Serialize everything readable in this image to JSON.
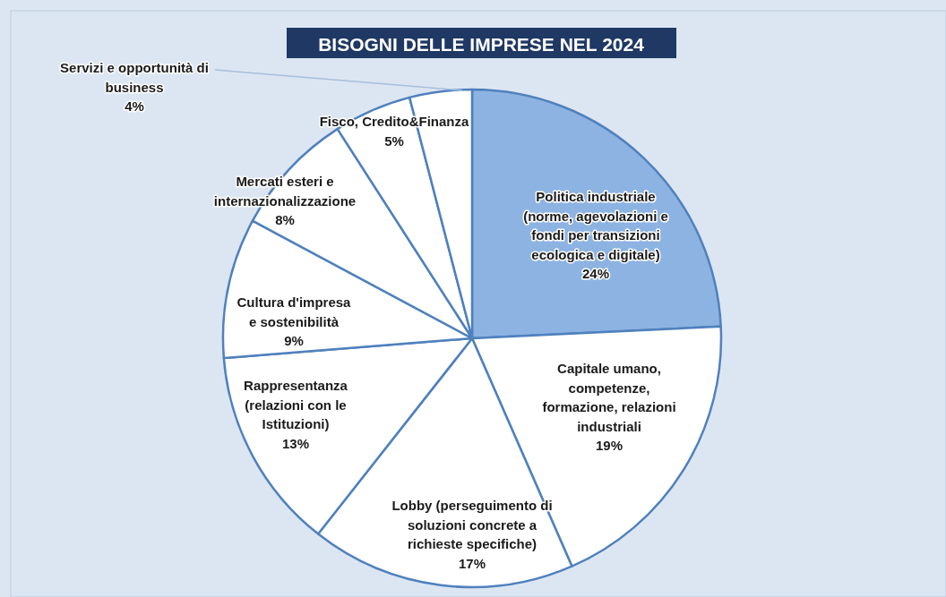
{
  "chart_data": {
    "type": "pie",
    "title": "BISOGNI DELLE IMPRESE NEL 2024",
    "categories": [
      "Politica industriale (norme, agevolazioni e fondi per transizioni ecologica e digitale)",
      "Capitale umano, competenze, formazione, relazioni industriali",
      "Lobby (perseguimento di soluzioni concrete a richieste specifiche)",
      "Rappresentanza (relazioni con le Istituzioni)",
      "Cultura d'impresa e sostenibilità",
      "Mercati esteri e internazionalizzazione",
      "Fisco, Credito&Finanza",
      "Servizi e opportunità di business"
    ],
    "values": [
      24,
      19,
      17,
      13,
      9,
      8,
      5,
      4
    ],
    "colors": [
      "#8db3e2",
      "#ffffff",
      "#ffffff",
      "#ffffff",
      "#ffffff",
      "#ffffff",
      "#ffffff",
      "#ffffff"
    ],
    "value_labels": [
      "24%",
      "19%",
      "17%",
      "13%",
      "9%",
      "8%",
      "5%",
      "4%"
    ]
  }
}
